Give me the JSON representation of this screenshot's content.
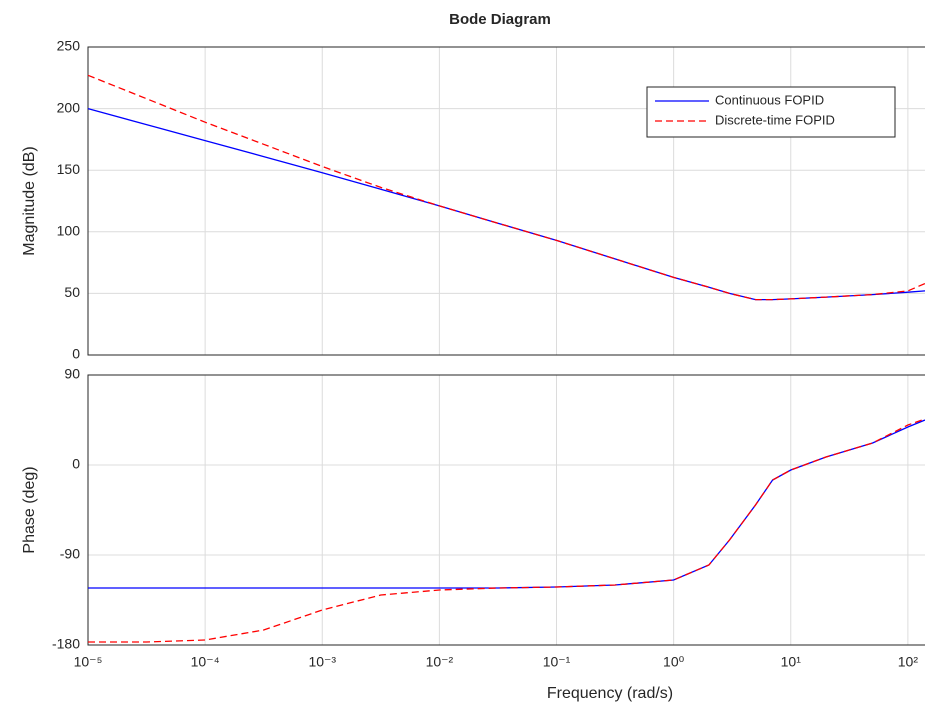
{
  "chart_data": [
    {
      "type": "line",
      "title": "Bode Diagram",
      "ylabel": "Magnitude (dB)",
      "xscale": "log",
      "x": [
        1e-05,
        3.16e-05,
        0.0001,
        0.000316,
        0.001,
        0.00316,
        0.01,
        0.0316,
        0.1,
        0.316,
        1,
        2,
        3,
        5,
        7,
        10,
        20,
        50,
        100,
        140
      ],
      "series": [
        {
          "name": "Continuous FOPID",
          "color": "#0000ff",
          "dash": "solid",
          "values": [
            200,
            187,
            174,
            161,
            148,
            134.5,
            121,
            107,
            93,
            78,
            63,
            55,
            50,
            45,
            45,
            45.5,
            47,
            49,
            51,
            52
          ]
        },
        {
          "name": "Discrete-time FOPID",
          "color": "#ff0000",
          "dash": "dashed",
          "values": [
            227,
            208,
            189,
            171,
            153,
            136,
            121,
            107,
            93,
            78,
            63,
            55,
            50,
            45,
            45,
            45.5,
            47,
            49,
            52,
            58
          ]
        }
      ],
      "xlim": [
        1e-05,
        140
      ],
      "ylim": [
        0,
        250
      ],
      "yticks": [
        0,
        50,
        100,
        150,
        200,
        250
      ],
      "grid": true,
      "legend": "upper right"
    },
    {
      "type": "line",
      "xlabel": "Frequency  (rad/s)",
      "ylabel": "Phase (deg)",
      "xscale": "log",
      "x": [
        1e-05,
        3.16e-05,
        0.0001,
        0.000316,
        0.001,
        0.00316,
        0.01,
        0.0316,
        0.1,
        0.316,
        1,
        2,
        3,
        5,
        7,
        10,
        20,
        50,
        100,
        140
      ],
      "series": [
        {
          "color": "#0000ff",
          "dash": "solid",
          "values": [
            -123,
            -123,
            -123,
            -123,
            -123,
            -123,
            -123,
            -123,
            -122,
            -120,
            -115,
            -100,
            -75,
            -40,
            -15,
            -5,
            8,
            22,
            38,
            45
          ]
        },
        {
          "color": "#ff0000",
          "dash": "dashed",
          "values": [
            -177,
            -177,
            -175,
            -165,
            -145,
            -130,
            -125,
            -123,
            -122,
            -120,
            -115,
            -100,
            -75,
            -40,
            -15,
            -5,
            8,
            22,
            40,
            46
          ]
        }
      ],
      "xlim": [
        1e-05,
        140
      ],
      "ylim": [
        -180,
        90
      ],
      "yticks": [
        -180,
        -90,
        0,
        90
      ],
      "xticks": [
        {
          "value": 1e-05,
          "label": "10⁻⁵"
        },
        {
          "value": 0.0001,
          "label": "10⁻⁴"
        },
        {
          "value": 0.001,
          "label": "10⁻³"
        },
        {
          "value": 0.01,
          "label": "10⁻²"
        },
        {
          "value": 0.1,
          "label": "10⁻¹"
        },
        {
          "value": 1,
          "label": "10⁰"
        },
        {
          "value": 10,
          "label": "10¹"
        },
        {
          "value": 100,
          "label": "10²"
        }
      ],
      "grid": true
    }
  ]
}
